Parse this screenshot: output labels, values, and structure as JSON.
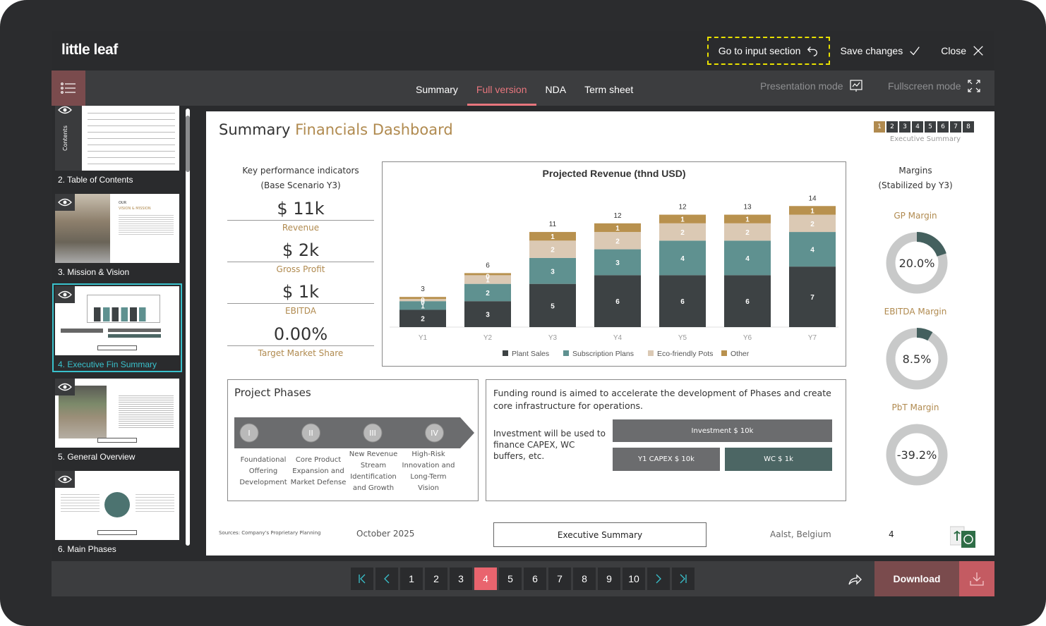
{
  "app": {
    "logo": "little leaf"
  },
  "top_actions": {
    "go_input": "Go to input section",
    "save": "Save changes",
    "close": "Close"
  },
  "tabs": [
    {
      "label": "Summary",
      "active": false
    },
    {
      "label": "Full version",
      "active": true
    },
    {
      "label": "NDA",
      "active": false
    },
    {
      "label": "Term sheet",
      "active": false
    }
  ],
  "modes": {
    "presentation": "Presentation mode",
    "fullscreen": "Fullscreen mode"
  },
  "sidebar": {
    "items": [
      {
        "label": "2. Table of Contents",
        "active": false
      },
      {
        "label": "3. Mission & Vision",
        "active": false
      },
      {
        "label": "4. Executive Fin Summary",
        "active": true
      },
      {
        "label": "5. General Overview",
        "active": false
      },
      {
        "label": "6. Main Phases",
        "active": false
      }
    ],
    "thumb_texts": {
      "contents": "Contents",
      "our": "OUR",
      "vision": "VISION & MISSION"
    }
  },
  "slide": {
    "title_plain": "Summary",
    "title_accent": "Financials Dashboard",
    "section_pager": [
      "1",
      "2",
      "3",
      "4",
      "5",
      "6",
      "7",
      "8"
    ],
    "section_active": "1",
    "section_label": "Executive Summary",
    "kpi_header_1": "Key performance indicators",
    "kpi_header_2": "(Base Scenario Y3)",
    "kpis": [
      {
        "value": "$ 11k",
        "label": "Revenue"
      },
      {
        "value": "$ 2k",
        "label": "Gross Profit"
      },
      {
        "value": "$ 1k",
        "label": "EBITDA"
      },
      {
        "value": "0.00%",
        "label": "Target Market Share"
      }
    ],
    "margins_header_1": "Margins",
    "margins_header_2": "(Stabilized by Y3)",
    "margins": [
      {
        "label": "GP Margin",
        "value_text": "20.0%",
        "value": 20.0
      },
      {
        "label": "EBITDA Margin",
        "value_text": "8.5%",
        "value": 8.5
      },
      {
        "label": "PbT Margin",
        "value_text": "-39.2%",
        "value": -39.2
      }
    ],
    "phases": {
      "title": "Project Phases",
      "items": [
        {
          "num": "I",
          "text": "Foundational Offering Development"
        },
        {
          "num": "II",
          "text": "Core Product Expansion and Market Defense"
        },
        {
          "num": "III",
          "text": "New Revenue Stream Identification and Growth"
        },
        {
          "num": "IV",
          "text": "High-Risk Innovation and Long-Term Vision"
        }
      ]
    },
    "funding": {
      "text": "Funding round is aimed to accelerate the development of Phases and create core infrastructure for operations.",
      "sub": "Investment will be used to finance CAPEX, WC buffers, etc.",
      "investment": "Investment $ 10k",
      "capex": "Y1 CAPEX $ 10k",
      "wc": "WC $ 1k"
    },
    "footer": {
      "sources": "Sources: Company's Proprietary Planning",
      "date": "October 2025",
      "section": "Executive Summary",
      "location": "Aalst, Belgium",
      "page": "4"
    }
  },
  "chart_data": {
    "type": "bar",
    "stacked": true,
    "title": "Projected Revenue (thnd USD)",
    "categories": [
      "Y1",
      "Y2",
      "Y3",
      "Y4",
      "Y5",
      "Y6",
      "Y7"
    ],
    "series": [
      {
        "name": "Plant Sales",
        "color": "#3d4244",
        "values": [
          2,
          3,
          5,
          6,
          6,
          6,
          7
        ]
      },
      {
        "name": "Subscription Plans",
        "color": "#5f9190",
        "values": [
          1,
          2,
          3,
          3,
          4,
          4,
          4
        ]
      },
      {
        "name": "Eco-friendly Pots",
        "color": "#dbc9b4",
        "values": [
          0,
          1,
          2,
          2,
          2,
          2,
          2
        ]
      },
      {
        "name": "Other",
        "color": "#b8914e",
        "values": [
          0,
          0,
          1,
          1,
          1,
          1,
          1
        ]
      }
    ],
    "totals": [
      3,
      6,
      11,
      12,
      12,
      13,
      14
    ],
    "xlabel": "",
    "ylabel": "",
    "ylim": [
      0,
      15
    ],
    "grid": false,
    "legend": "bottom"
  },
  "pagination": {
    "pages": [
      "1",
      "2",
      "3",
      "4",
      "5",
      "6",
      "7",
      "8",
      "9",
      "10"
    ],
    "current": "4"
  },
  "download": {
    "label": "Download"
  },
  "colors": {
    "accent": "#e9646e",
    "brand": "#7a4b4d",
    "active": "#39c1cc",
    "gold": "#b08a4f"
  }
}
